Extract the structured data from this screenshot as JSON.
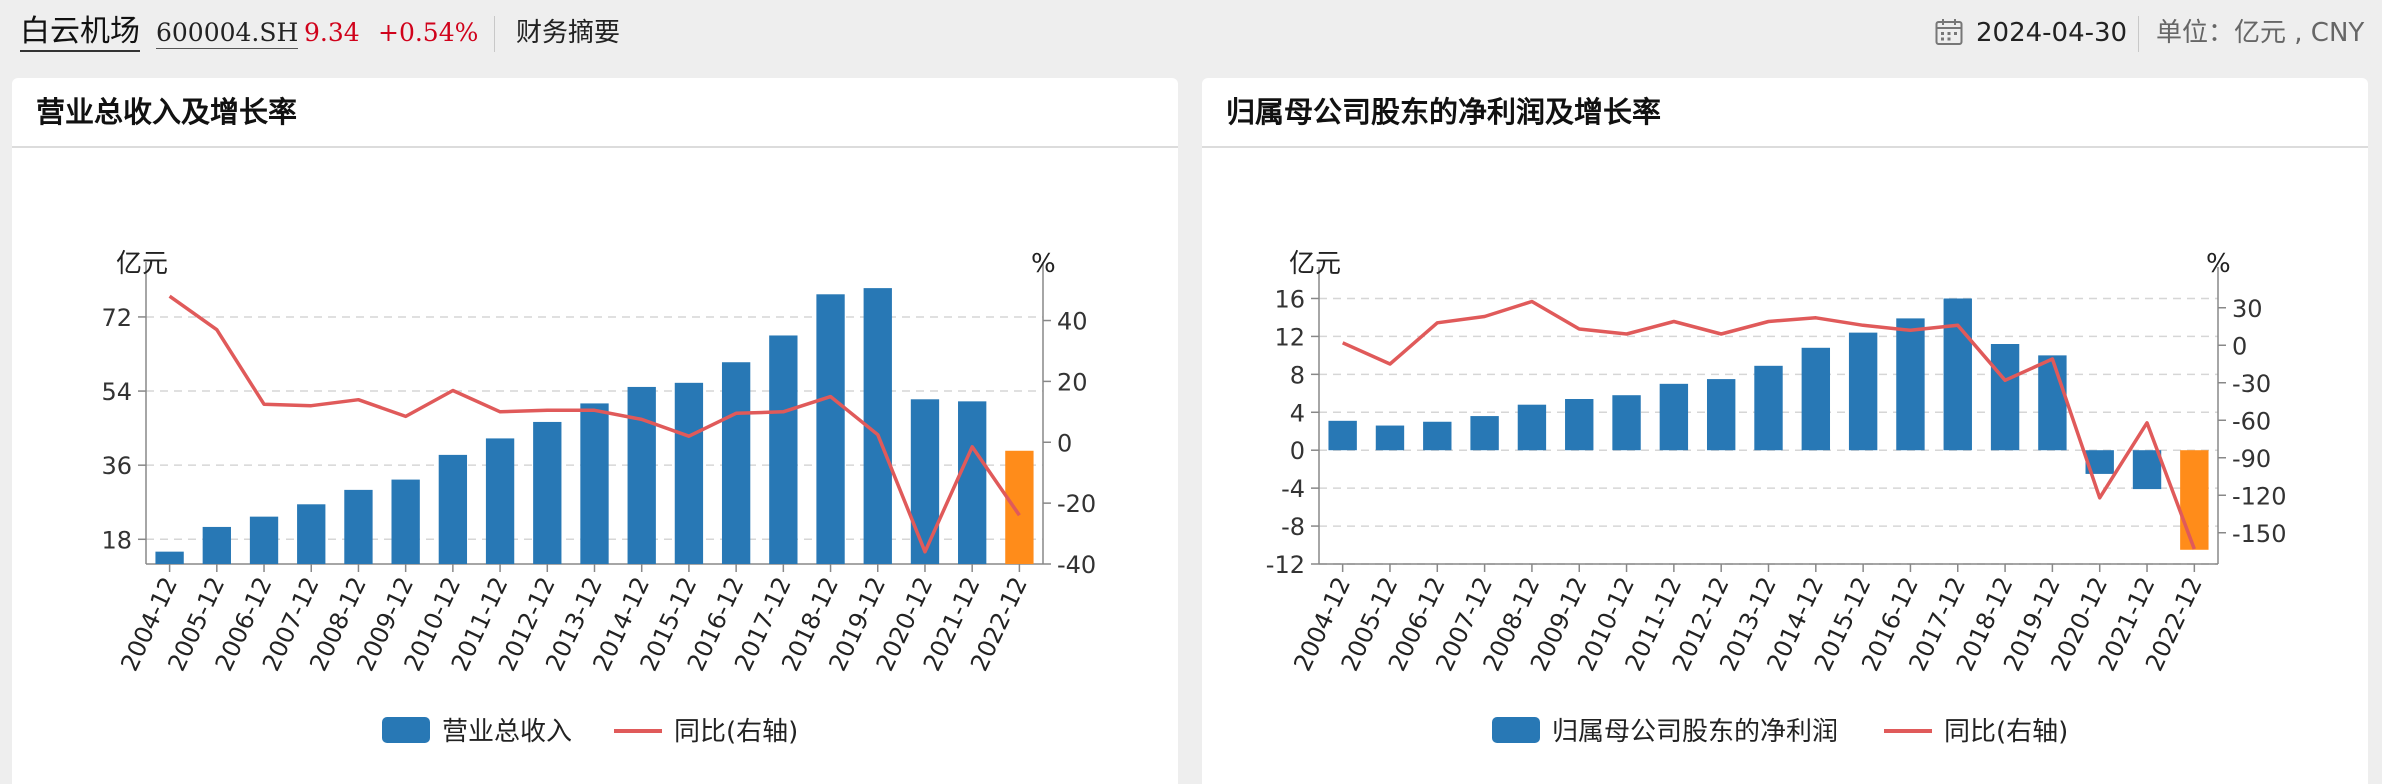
{
  "header": {
    "stock_name": "白云机场",
    "stock_code": "600004.SH",
    "price": "9.34",
    "change_pct": "+0.54%",
    "tab": "财务摘要",
    "date_icon": "calendar-icon",
    "date": "2024-04-30",
    "unit": "单位：亿元 , CNY",
    "colors": {
      "up": "#d0021b"
    }
  },
  "panels": {
    "revenue": {
      "title": "营业总收入及增长率"
    },
    "profit": {
      "title": "归属母公司股东的净利润及增长率"
    }
  },
  "chart_data": [
    {
      "type": "bar",
      "title": "营业总收入及增长率",
      "categories": [
        "2004-12",
        "2005-12",
        "2006-12",
        "2007-12",
        "2008-12",
        "2009-12",
        "2010-12",
        "2011-12",
        "2012-12",
        "2013-12",
        "2014-12",
        "2015-12",
        "2016-12",
        "2017-12",
        "2018-12",
        "2019-12",
        "2020-12",
        "2021-12",
        "2022-12"
      ],
      "left_axis": {
        "unit": "亿元",
        "ylim": [
          12,
          80
        ],
        "ticks": [
          18,
          36,
          54,
          72
        ]
      },
      "right_axis": {
        "unit": "%",
        "ylim": [
          -40,
          52
        ],
        "ticks": [
          -40,
          -20,
          0,
          20,
          40
        ]
      },
      "series": [
        {
          "name": "营业总收入",
          "type": "bar",
          "axis": "left",
          "values": [
            15,
            21,
            23.5,
            26.5,
            30,
            32.5,
            38.5,
            42.5,
            46.5,
            51,
            55,
            56,
            61,
            67.5,
            77.5,
            79,
            52,
            51.5,
            39.5
          ],
          "color": "#2878b5",
          "highlight_last_color": "#ff8c1a"
        },
        {
          "name": "同比(右轴)",
          "type": "line",
          "axis": "right",
          "values": [
            48,
            37,
            12.5,
            12,
            14,
            8.5,
            17,
            10,
            10.5,
            10.5,
            7.5,
            2,
            9.5,
            10,
            15,
            2.5,
            -36,
            -1.5,
            -24
          ],
          "color": "#e05a5a"
        }
      ],
      "grid": true,
      "legend": "bottom"
    },
    {
      "type": "bar",
      "title": "归属母公司股东的净利润及增长率",
      "categories": [
        "2004-12",
        "2005-12",
        "2006-12",
        "2007-12",
        "2008-12",
        "2009-12",
        "2010-12",
        "2011-12",
        "2012-12",
        "2013-12",
        "2014-12",
        "2015-12",
        "2016-12",
        "2017-12",
        "2018-12",
        "2019-12",
        "2020-12",
        "2021-12",
        "2022-12"
      ],
      "left_axis": {
        "unit": "亿元",
        "ylim": [
          -12,
          17
        ],
        "ticks": [
          -12,
          -8,
          -4,
          0,
          4,
          8,
          12,
          16
        ]
      },
      "right_axis": {
        "unit": "%",
        "ylim": [
          -175,
          45
        ],
        "ticks": [
          -150,
          -120,
          -90,
          -60,
          -30,
          0,
          30
        ]
      },
      "series": [
        {
          "name": "归属母公司股东的净利润",
          "type": "bar",
          "axis": "left",
          "values": [
            3.1,
            2.6,
            3.0,
            3.6,
            4.8,
            5.4,
            5.8,
            7.0,
            7.5,
            8.9,
            10.8,
            12.4,
            13.9,
            16.0,
            11.2,
            10.0,
            -2.5,
            -4.1,
            -10.5
          ],
          "color": "#2878b5",
          "highlight_last_color": "#ff8c1a"
        },
        {
          "name": "同比(右轴)",
          "type": "line",
          "axis": "right",
          "values": [
            2,
            -15,
            18,
            23,
            35,
            13,
            9,
            19,
            9,
            19,
            22,
            16,
            12,
            16,
            -28,
            -11,
            -122,
            -62,
            -163
          ],
          "color": "#e05a5a"
        }
      ],
      "grid": true,
      "legend": "bottom"
    }
  ]
}
